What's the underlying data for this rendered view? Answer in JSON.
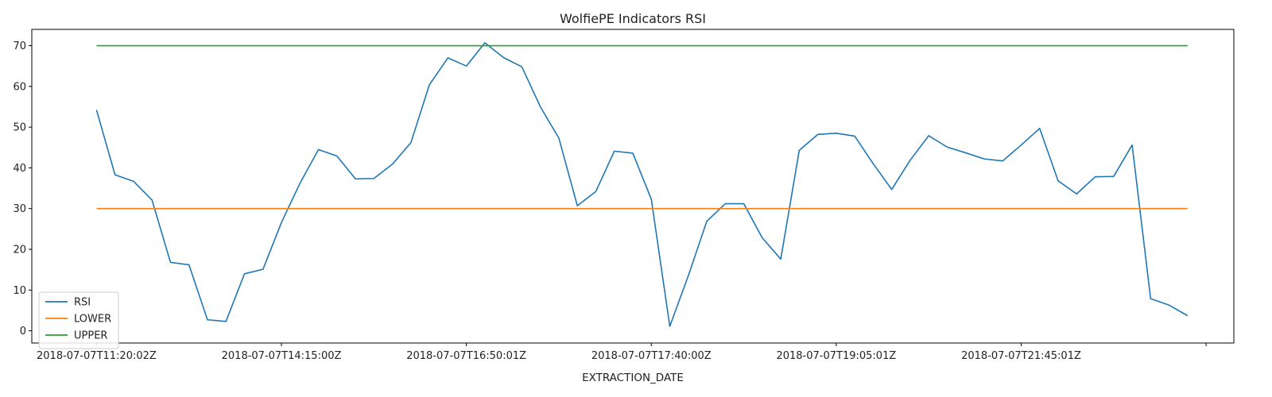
{
  "chart_data": {
    "type": "line",
    "title": "WolfiePE Indicators RSI",
    "xlabel": "EXTRACTION_DATE",
    "ylabel": "",
    "ylim": [
      -3,
      74
    ],
    "xlim": [
      -3.5,
      61.5
    ],
    "yticks": [
      0,
      10,
      20,
      30,
      40,
      50,
      60,
      70
    ],
    "xticks": [
      {
        "pos": 0,
        "label": "2018-07-07T11:20:02Z"
      },
      {
        "pos": 10,
        "label": "2018-07-07T14:15:00Z"
      },
      {
        "pos": 20,
        "label": "2018-07-07T16:50:01Z"
      },
      {
        "pos": 30,
        "label": "2018-07-07T17:40:00Z"
      },
      {
        "pos": 40,
        "label": "2018-07-07T19:05:01Z"
      },
      {
        "pos": 50,
        "label": "2018-07-07T21:45:01Z"
      },
      {
        "pos": 60,
        "label": ""
      }
    ],
    "grid": false,
    "legend_position": "lower-left",
    "series": [
      {
        "name": "RSI",
        "color": "#1f77b4",
        "values": [
          54.2,
          38.3,
          36.7,
          32.1,
          16.8,
          16.2,
          2.7,
          2.3,
          14.0,
          15.1,
          26.6,
          36.2,
          44.5,
          42.9,
          37.3,
          37.4,
          40.9,
          46.2,
          60.4,
          67.0,
          65.0,
          70.7,
          67.1,
          64.8,
          55.0,
          47.3,
          30.7,
          34.2,
          44.1,
          43.6,
          32.3,
          1.1,
          13.5,
          26.9,
          31.2,
          31.2,
          22.8,
          17.6,
          44.3,
          48.2,
          48.5,
          47.8,
          41.0,
          34.7,
          41.9,
          47.9,
          45.1,
          43.7,
          42.2,
          41.7,
          45.6,
          49.7,
          36.8,
          33.6,
          37.8,
          37.9,
          45.6,
          7.9,
          6.3,
          3.7
        ]
      },
      {
        "name": "LOWER",
        "color": "#ff7f0e",
        "values": [
          30,
          30,
          30,
          30,
          30,
          30,
          30,
          30,
          30,
          30,
          30,
          30,
          30,
          30,
          30,
          30,
          30,
          30,
          30,
          30,
          30,
          30,
          30,
          30,
          30,
          30,
          30,
          30,
          30,
          30,
          30,
          30,
          30,
          30,
          30,
          30,
          30,
          30,
          30,
          30,
          30,
          30,
          30,
          30,
          30,
          30,
          30,
          30,
          30,
          30,
          30,
          30,
          30,
          30,
          30,
          30,
          30,
          30,
          30,
          30
        ]
      },
      {
        "name": "UPPER",
        "color": "#2ca02c",
        "values": [
          70,
          70,
          70,
          70,
          70,
          70,
          70,
          70,
          70,
          70,
          70,
          70,
          70,
          70,
          70,
          70,
          70,
          70,
          70,
          70,
          70,
          70,
          70,
          70,
          70,
          70,
          70,
          70,
          70,
          70,
          70,
          70,
          70,
          70,
          70,
          70,
          70,
          70,
          70,
          70,
          70,
          70,
          70,
          70,
          70,
          70,
          70,
          70,
          70,
          70,
          70,
          70,
          70,
          70,
          70,
          70,
          70,
          70,
          70,
          70
        ]
      }
    ]
  }
}
